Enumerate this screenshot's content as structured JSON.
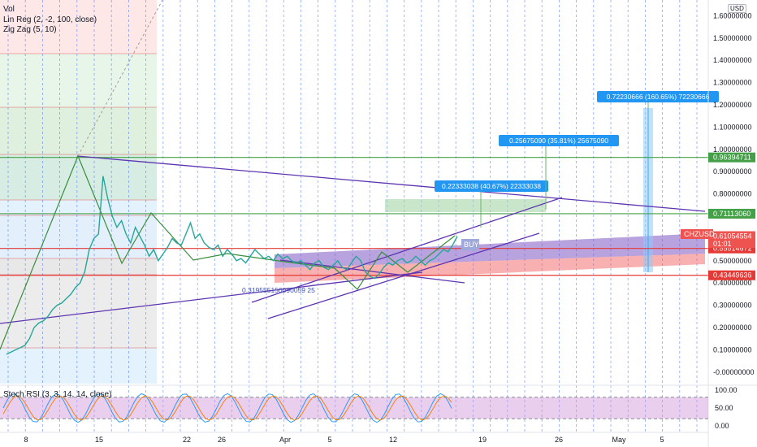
{
  "currency_label": "USD",
  "indicators": [
    "Vol",
    "Lin Reg (2, -2, 100, close)",
    "Zig Zag (5, 10)"
  ],
  "ticker_tag": "CHZUSD",
  "countdown": "01:01",
  "buy_label": "BUY",
  "regression_value_label": "0.319555150090059 25",
  "stoch_rsi_label": "Stoch RSI (3, 3, 14, 14, close)",
  "callouts": [
    {
      "text": "0.22333038 (40.67%) 22333038"
    },
    {
      "text": "0.25675090 (35.81%) 25675090"
    },
    {
      "text": "0.72230666 (160.65%) 72230666"
    }
  ],
  "colors": {
    "fib_line": "#e53935",
    "green_line": "#43a047",
    "red_line": "#e53935",
    "purple_line": "#5e35b1",
    "price_tag": "#ef5350",
    "callout_bg": "#2196f3",
    "stoch_k": "#2196f3",
    "stoch_d": "#f57c00",
    "stoch_band": "#ce93d8"
  },
  "chart_data": {
    "type": "line",
    "title": "",
    "y_axis": {
      "min": -0.05,
      "max": 1.65,
      "ticks": [
        -0.0,
        0.1,
        0.2,
        0.3,
        0.4,
        0.5,
        0.6,
        0.7,
        0.8,
        0.9,
        1.0,
        1.1,
        1.2,
        1.3,
        1.4,
        1.5,
        1.6
      ]
    },
    "y_tick_labels": [
      "-0.00000000",
      "0.10000000",
      "0.20000000",
      "0.30000000",
      "0.40000000",
      "0.50000000",
      "0.60000000",
      "0.70000000",
      "0.80000000",
      "0.90000000",
      "1.00000000",
      "1.10000000",
      "1.20000000",
      "1.30000000",
      "1.40000000",
      "1.50000000",
      "1.60000000"
    ],
    "x_axis": {
      "labels": [
        "8",
        "15",
        "22",
        "26",
        "Apr",
        "5",
        "12",
        "19",
        "26",
        "May",
        "5"
      ]
    },
    "price_levels": [
      {
        "value": 0.96394711,
        "label": "0.96394711",
        "color": "#43a047"
      },
      {
        "value": 0.7111306,
        "label": "0.71113060",
        "color": "#43a047"
      },
      {
        "value": 0.61054554,
        "label": "0.61054554",
        "color": "#ef5350"
      },
      {
        "value": 0.55514672,
        "label": "0.55514672",
        "color": "#e53935"
      },
      {
        "value": 0.43449636,
        "label": "0.43449636",
        "color": "#e53935"
      }
    ],
    "stoch_rsi": {
      "ticks": [
        "100.00",
        "50.00",
        "0.00"
      ],
      "upper": 80,
      "lower": 20
    },
    "price_series": [
      0.08,
      0.09,
      0.1,
      0.11,
      0.12,
      0.15,
      0.2,
      0.22,
      0.23,
      0.25,
      0.28,
      0.3,
      0.31,
      0.33,
      0.35,
      0.38,
      0.4,
      0.45,
      0.55,
      0.6,
      0.62,
      0.88,
      0.78,
      0.7,
      0.65,
      0.68,
      0.62,
      0.58,
      0.65,
      0.61,
      0.57,
      0.52,
      0.55,
      0.5,
      0.53,
      0.56,
      0.6,
      0.58,
      0.57,
      0.62,
      0.67,
      0.6,
      0.62,
      0.58,
      0.56,
      0.55,
      0.57,
      0.52,
      0.55,
      0.53,
      0.5,
      0.51,
      0.49,
      0.52,
      0.55,
      0.53,
      0.51,
      0.52,
      0.5,
      0.53,
      0.51,
      0.52,
      0.5,
      0.49,
      0.5,
      0.48,
      0.46,
      0.49,
      0.5,
      0.47,
      0.46,
      0.48,
      0.5,
      0.47,
      0.46,
      0.49,
      0.52,
      0.5,
      0.45,
      0.43,
      0.42,
      0.44,
      0.47,
      0.49,
      0.48,
      0.5,
      0.51,
      0.49,
      0.5,
      0.52,
      0.5,
      0.48,
      0.5,
      0.51,
      0.53,
      0.55,
      0.54,
      0.57,
      0.61
    ]
  }
}
